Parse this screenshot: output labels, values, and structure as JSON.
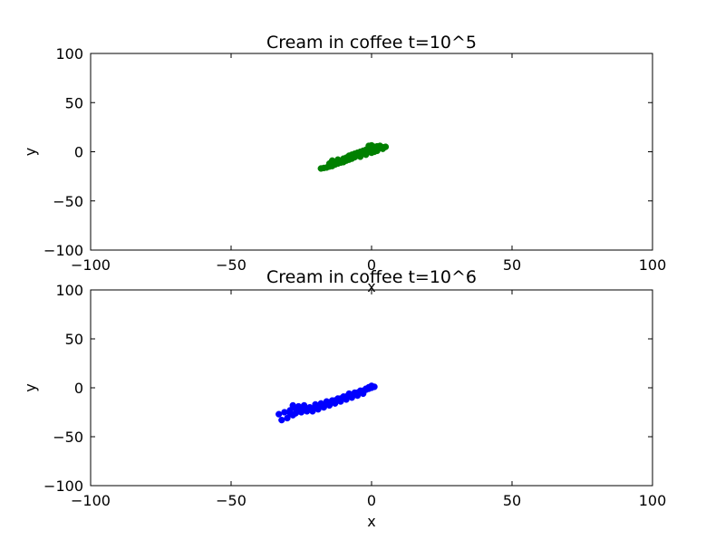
{
  "chart_data": [
    {
      "type": "scatter",
      "title": "Cream in coffee t=10^5",
      "xlabel": "x",
      "ylabel": "y",
      "xlim": [
        -100,
        100
      ],
      "ylim": [
        -100,
        100
      ],
      "xticks": [
        -100,
        -50,
        0,
        50,
        100
      ],
      "yticks": [
        -100,
        -50,
        0,
        50,
        100
      ],
      "xtick_labels": [
        "−100",
        "−50",
        "0",
        "50",
        "100"
      ],
      "ytick_labels": [
        "−100",
        "−50",
        "0",
        "50",
        "100"
      ],
      "grid": false,
      "color": "#008000",
      "points": [
        [
          -18,
          -17
        ],
        [
          -17,
          -16.5
        ],
        [
          -16,
          -16
        ],
        [
          -15,
          -15
        ],
        [
          -14,
          -14.5
        ],
        [
          -13,
          -13
        ],
        [
          -12,
          -12
        ],
        [
          -11,
          -11
        ],
        [
          -10,
          -10.5
        ],
        [
          -9,
          -9
        ],
        [
          -8,
          -8
        ],
        [
          -7,
          -7
        ],
        [
          -6,
          -5.5
        ],
        [
          -5,
          -4
        ],
        [
          -4,
          -3
        ],
        [
          -3,
          -2
        ],
        [
          -2,
          -1
        ],
        [
          -1,
          0
        ],
        [
          0,
          1
        ],
        [
          1,
          2
        ],
        [
          2,
          3
        ],
        [
          3,
          4
        ],
        [
          4,
          4.5
        ],
        [
          5,
          5
        ],
        [
          -14,
          -9
        ],
        [
          -12,
          -8
        ],
        [
          -10,
          -7
        ],
        [
          -9,
          -6
        ],
        [
          -8,
          -4
        ],
        [
          -7,
          -3
        ],
        [
          -6,
          -2
        ],
        [
          -5,
          -1
        ],
        [
          -4,
          0
        ],
        [
          -3,
          1
        ],
        [
          -2,
          2
        ],
        [
          -1,
          3
        ],
        [
          0,
          4
        ],
        [
          1,
          5
        ],
        [
          2,
          5.5
        ],
        [
          3,
          6
        ],
        [
          -1,
          6
        ],
        [
          0,
          6.5
        ],
        [
          -15,
          -12
        ],
        [
          -13,
          -11
        ],
        [
          -11,
          -9
        ],
        [
          -9,
          -8
        ],
        [
          -8,
          -6
        ],
        [
          -6,
          -4
        ],
        [
          -5,
          -2
        ],
        [
          -3,
          -1
        ],
        [
          -2,
          0
        ],
        [
          0,
          -1
        ],
        [
          1,
          0
        ],
        [
          -4,
          -5
        ],
        [
          -2,
          -3
        ],
        [
          2,
          1
        ],
        [
          4,
          3
        ],
        [
          -7,
          -5
        ],
        [
          -10,
          -9
        ],
        [
          -12,
          -10
        ]
      ]
    },
    {
      "type": "scatter",
      "title": "Cream in coffee t=10^6",
      "xlabel": "x",
      "ylabel": "y",
      "xlim": [
        -100,
        100
      ],
      "ylim": [
        -100,
        100
      ],
      "xticks": [
        -100,
        -50,
        0,
        50,
        100
      ],
      "yticks": [
        -100,
        -50,
        0,
        50,
        100
      ],
      "xtick_labels": [
        "−100",
        "−50",
        "0",
        "50",
        "100"
      ],
      "ytick_labels": [
        "−100",
        "−50",
        "0",
        "50",
        "100"
      ],
      "grid": false,
      "color": "#0000ff",
      "points": [
        [
          -33,
          -27
        ],
        [
          -32,
          -33
        ],
        [
          -30,
          -31
        ],
        [
          -29,
          -26
        ],
        [
          -28,
          -28
        ],
        [
          -27,
          -26
        ],
        [
          -26,
          -24
        ],
        [
          -25,
          -25
        ],
        [
          -24,
          -22
        ],
        [
          -23,
          -23
        ],
        [
          -22,
          -21
        ],
        [
          -21,
          -22
        ],
        [
          -20,
          -20
        ],
        [
          -19,
          -19
        ],
        [
          -18,
          -19
        ],
        [
          -17,
          -17
        ],
        [
          -16,
          -16
        ],
        [
          -15,
          -15
        ],
        [
          -14,
          -14
        ],
        [
          -13,
          -13
        ],
        [
          -12,
          -12
        ],
        [
          -11,
          -11
        ],
        [
          -10,
          -10
        ],
        [
          -9,
          -9
        ],
        [
          -8,
          -8
        ],
        [
          -7,
          -7
        ],
        [
          -6,
          -6
        ],
        [
          -5,
          -5
        ],
        [
          -4,
          -4
        ],
        [
          -3,
          -3
        ],
        [
          -2,
          -2
        ],
        [
          -1,
          -1
        ],
        [
          0,
          0
        ],
        [
          1,
          1
        ],
        [
          0,
          2
        ],
        [
          -1,
          0.5
        ],
        [
          -28,
          -18
        ],
        [
          -26,
          -19
        ],
        [
          -24,
          -18
        ],
        [
          -22,
          -20
        ],
        [
          -20,
          -17
        ],
        [
          -18,
          -16
        ],
        [
          -16,
          -14
        ],
        [
          -14,
          -13
        ],
        [
          -12,
          -11
        ],
        [
          -10,
          -9
        ],
        [
          -8,
          -6
        ],
        [
          -6,
          -5
        ],
        [
          -4,
          -3
        ],
        [
          -2,
          -1
        ],
        [
          -27,
          -21
        ],
        [
          -25,
          -23
        ],
        [
          -23,
          -24
        ],
        [
          -21,
          -24
        ],
        [
          -19,
          -22
        ],
        [
          -17,
          -20
        ],
        [
          -15,
          -18
        ],
        [
          -13,
          -16
        ],
        [
          -11,
          -14
        ],
        [
          -9,
          -12
        ],
        [
          -7,
          -10
        ],
        [
          -5,
          -8
        ],
        [
          -3,
          -6
        ],
        [
          -29,
          -23
        ],
        [
          -31,
          -25
        ],
        [
          -26,
          -22
        ]
      ]
    }
  ]
}
